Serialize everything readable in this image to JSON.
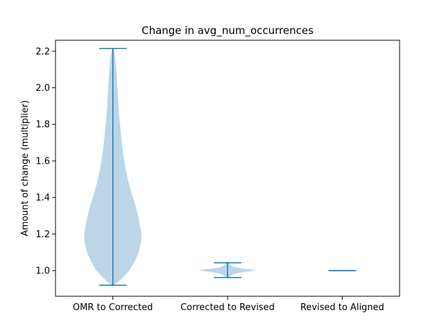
{
  "chart_data": {
    "type": "violin",
    "title": "Change in avg_num_occurrences",
    "xlabel": "",
    "ylabel": "Amount of change (multiplier)",
    "categories": [
      "OMR to Corrected",
      "Corrected to Revised",
      "Revised to Aligned"
    ],
    "ylim": [
      0.86,
      2.26
    ],
    "yticks": [
      1.0,
      1.2,
      1.4,
      1.6,
      1.8,
      2.0,
      2.2
    ],
    "ytick_labels": [
      "1.0",
      "1.2",
      "1.4",
      "1.6",
      "1.8",
      "2.0",
      "2.2"
    ],
    "grid": false,
    "colors": {
      "body": "#bcd6e8",
      "line": "#1f77b4"
    },
    "violins": [
      {
        "category": "OMR to Corrected",
        "min": 0.92,
        "max": 2.215,
        "profile": [
          [
            0.92,
            0.04
          ],
          [
            0.94,
            0.2
          ],
          [
            0.97,
            0.4
          ],
          [
            1.0,
            0.57
          ],
          [
            1.05,
            0.76
          ],
          [
            1.1,
            0.9
          ],
          [
            1.15,
            0.98
          ],
          [
            1.18,
            1.0
          ],
          [
            1.22,
            0.98
          ],
          [
            1.28,
            0.91
          ],
          [
            1.35,
            0.8
          ],
          [
            1.42,
            0.66
          ],
          [
            1.5,
            0.52
          ],
          [
            1.58,
            0.42
          ],
          [
            1.65,
            0.35
          ],
          [
            1.75,
            0.28
          ],
          [
            1.85,
            0.22
          ],
          [
            1.95,
            0.18
          ],
          [
            2.05,
            0.14
          ],
          [
            2.12,
            0.11
          ],
          [
            2.17,
            0.08
          ],
          [
            2.2,
            0.05
          ],
          [
            2.215,
            0.02
          ]
        ]
      },
      {
        "category": "Corrected to Revised",
        "min": 0.962,
        "max": 1.043,
        "profile": [
          [
            0.962,
            0.04
          ],
          [
            0.97,
            0.1
          ],
          [
            0.978,
            0.18
          ],
          [
            0.985,
            0.3
          ],
          [
            0.992,
            0.55
          ],
          [
            0.998,
            0.85
          ],
          [
            1.002,
            1.0
          ],
          [
            1.007,
            0.8
          ],
          [
            1.013,
            0.45
          ],
          [
            1.02,
            0.22
          ],
          [
            1.028,
            0.12
          ],
          [
            1.035,
            0.08
          ],
          [
            1.043,
            0.04
          ]
        ]
      },
      {
        "category": "Revised to Aligned",
        "min": 1.0,
        "max": 1.0,
        "profile": []
      }
    ]
  }
}
